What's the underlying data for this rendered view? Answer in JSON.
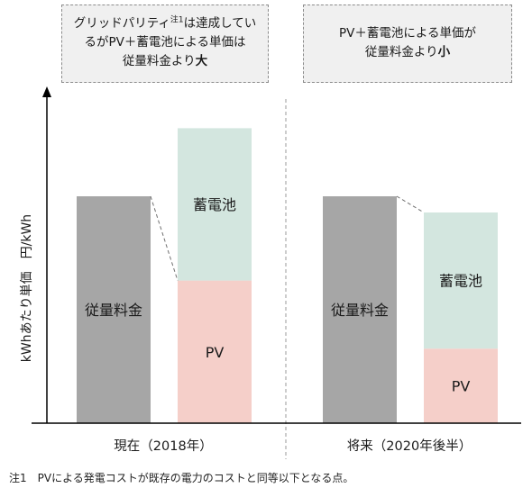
{
  "callouts": {
    "left": {
      "line1_pre": "グリッドパリティ",
      "line1_sup": "注1",
      "line1_post": "は達成してい",
      "line2": "るがPV＋蓄電池による単価は",
      "line3_pre": "従量料金より",
      "line3_bold": "大"
    },
    "right": {
      "line1": "PV＋蓄電池による単価が",
      "line2_pre": "従量料金より",
      "line2_bold": "小"
    }
  },
  "footnote": "注1　PVによる発電コストが既存の電力のコストと同等以下となる点。",
  "colors": {
    "tariff": "#a6a6a6",
    "battery": "#d3e6df",
    "pv": "#f5cfc9",
    "axis": "#000000",
    "divider": "#9a9a9a"
  },
  "chart_data": {
    "type": "bar",
    "stacked": true,
    "ylabel": "kWhあたり単価　円/kWh",
    "y_ticks": false,
    "groups": [
      {
        "label": "現在（2018年）",
        "bars": [
          {
            "segments": [
              {
                "name": "従量料金",
                "value": 0.7,
                "color_key": "tariff"
              }
            ]
          },
          {
            "segments": [
              {
                "name": "PV",
                "value": 0.44,
                "color_key": "pv"
              },
              {
                "name": "蓄電池",
                "value": 0.47,
                "color_key": "battery"
              }
            ]
          }
        ]
      },
      {
        "label": "将来（2020年後半）",
        "bars": [
          {
            "segments": [
              {
                "name": "従量料金",
                "value": 0.7,
                "color_key": "tariff"
              }
            ]
          },
          {
            "segments": [
              {
                "name": "PV",
                "value": 0.23,
                "color_key": "pv"
              },
              {
                "name": "蓄電池",
                "value": 0.42,
                "color_key": "battery"
              }
            ]
          }
        ]
      }
    ],
    "ylim": [
      0,
      1.0
    ]
  }
}
